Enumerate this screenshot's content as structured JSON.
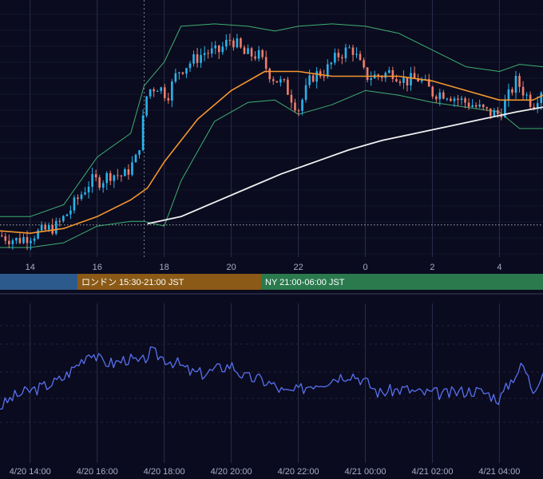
{
  "colors": {
    "background": "#0a0b1f",
    "grid": "#2a2d48",
    "candle_up": "#2bb3ea",
    "candle_down": "#ef7d6a",
    "bb_band": "#3fae72",
    "ma_short": "#f4962e",
    "ma_long": "#f0f0f0",
    "oscillator": "#5870ee",
    "session_tokyo": "#2d5a8c",
    "session_london": "#8a5a16",
    "session_ny": "#2b7a4e"
  },
  "sessions": [
    {
      "label": "",
      "color_key": "session_tokyo"
    },
    {
      "label": "ロンドン 15:30-21:00 JST",
      "color_key": "session_london"
    },
    {
      "label": "NY 21:00-06:00 JST",
      "color_key": "session_ny"
    }
  ],
  "chart_data": [
    {
      "type": "candlestick",
      "title": "",
      "x_tick_labels": [
        "14",
        "16",
        "18",
        "20",
        "22",
        "0",
        "2",
        "4"
      ],
      "x_ticks_hours": [
        14,
        16,
        18,
        20,
        22,
        24,
        26,
        28
      ],
      "x_range_hours": [
        13.1,
        29.3
      ],
      "y_range": [
        0.0,
        1.0
      ],
      "y_axis_labels": "none",
      "grid": true,
      "reference_line": {
        "y": 0.115,
        "style": "dotted"
      },
      "crosshair_x_hour": 17.4,
      "indicators": [
        "Bollinger Bands",
        "Moving Average (short)",
        "Moving Average (long)"
      ],
      "price_path": [
        [
          13.1,
          0.07
        ],
        [
          13.6,
          0.05
        ],
        [
          14.2,
          0.08
        ],
        [
          14.8,
          0.11
        ],
        [
          15.2,
          0.18
        ],
        [
          15.5,
          0.24
        ],
        [
          15.8,
          0.3
        ],
        [
          16.1,
          0.3
        ],
        [
          16.4,
          0.33
        ],
        [
          16.8,
          0.32
        ],
        [
          17.2,
          0.4
        ],
        [
          17.5,
          0.68
        ],
        [
          17.8,
          0.7
        ],
        [
          18.1,
          0.66
        ],
        [
          18.4,
          0.76
        ],
        [
          18.8,
          0.8
        ],
        [
          19.2,
          0.84
        ],
        [
          19.6,
          0.84
        ],
        [
          20.0,
          0.9
        ],
        [
          20.4,
          0.83
        ],
        [
          20.8,
          0.83
        ],
        [
          21.2,
          0.74
        ],
        [
          21.6,
          0.7
        ],
        [
          22.0,
          0.6
        ],
        [
          22.4,
          0.74
        ],
        [
          22.8,
          0.76
        ],
        [
          23.2,
          0.83
        ],
        [
          23.6,
          0.86
        ],
        [
          24.0,
          0.74
        ],
        [
          24.4,
          0.74
        ],
        [
          24.8,
          0.76
        ],
        [
          25.2,
          0.72
        ],
        [
          25.6,
          0.73
        ],
        [
          26.0,
          0.67
        ],
        [
          26.4,
          0.67
        ],
        [
          26.8,
          0.64
        ],
        [
          27.2,
          0.62
        ],
        [
          27.6,
          0.59
        ],
        [
          28.0,
          0.58
        ],
        [
          28.5,
          0.72
        ],
        [
          29.0,
          0.62
        ],
        [
          29.3,
          0.7
        ]
      ],
      "ma_short_path": [
        [
          13.1,
          0.09
        ],
        [
          14.0,
          0.08
        ],
        [
          15.0,
          0.1
        ],
        [
          16.0,
          0.15
        ],
        [
          17.0,
          0.22
        ],
        [
          17.5,
          0.27
        ],
        [
          18.0,
          0.38
        ],
        [
          19.0,
          0.56
        ],
        [
          20.0,
          0.68
        ],
        [
          21.0,
          0.76
        ],
        [
          22.0,
          0.76
        ],
        [
          23.0,
          0.74
        ],
        [
          24.0,
          0.74
        ],
        [
          25.0,
          0.74
        ],
        [
          26.0,
          0.72
        ],
        [
          27.0,
          0.68
        ],
        [
          28.0,
          0.64
        ],
        [
          29.0,
          0.64
        ],
        [
          29.3,
          0.66
        ]
      ],
      "ma_long_path": [
        [
          17.5,
          0.12
        ],
        [
          18.5,
          0.15
        ],
        [
          19.5,
          0.21
        ],
        [
          20.5,
          0.27
        ],
        [
          21.5,
          0.33
        ],
        [
          22.5,
          0.38
        ],
        [
          23.5,
          0.43
        ],
        [
          24.5,
          0.47
        ],
        [
          25.5,
          0.5
        ],
        [
          26.5,
          0.53
        ],
        [
          27.5,
          0.56
        ],
        [
          28.5,
          0.59
        ],
        [
          29.3,
          0.61
        ]
      ],
      "bb_upper_path": [
        [
          13.1,
          0.15
        ],
        [
          14.0,
          0.15
        ],
        [
          15.0,
          0.2
        ],
        [
          16.0,
          0.4
        ],
        [
          17.0,
          0.5
        ],
        [
          17.4,
          0.7
        ],
        [
          18.0,
          0.8
        ],
        [
          18.5,
          0.95
        ],
        [
          19.5,
          0.96
        ],
        [
          20.5,
          0.95
        ],
        [
          21.3,
          0.93
        ],
        [
          22.0,
          0.95
        ],
        [
          23.0,
          0.96
        ],
        [
          24.0,
          0.95
        ],
        [
          25.0,
          0.92
        ],
        [
          26.0,
          0.85
        ],
        [
          27.0,
          0.78
        ],
        [
          28.0,
          0.76
        ],
        [
          28.6,
          0.79
        ],
        [
          29.3,
          0.78
        ]
      ],
      "bb_lower_path": [
        [
          13.1,
          0.02
        ],
        [
          14.0,
          0.02
        ],
        [
          15.0,
          0.04
        ],
        [
          16.0,
          0.11
        ],
        [
          17.0,
          0.13
        ],
        [
          17.4,
          0.13
        ],
        [
          18.0,
          0.11
        ],
        [
          18.5,
          0.3
        ],
        [
          19.5,
          0.55
        ],
        [
          20.5,
          0.63
        ],
        [
          21.3,
          0.64
        ],
        [
          22.0,
          0.58
        ],
        [
          23.0,
          0.62
        ],
        [
          24.0,
          0.68
        ],
        [
          25.0,
          0.66
        ],
        [
          26.0,
          0.63
        ],
        [
          27.0,
          0.61
        ],
        [
          28.0,
          0.59
        ],
        [
          28.6,
          0.52
        ],
        [
          29.3,
          0.52
        ]
      ]
    },
    {
      "type": "line",
      "title": "",
      "x_tick_labels": [
        "4/20 14:00",
        "4/20 16:00",
        "4/20 18:00",
        "4/20 20:00",
        "4/20 22:00",
        "4/21 00:00",
        "4/21 02:00",
        "4/21 04:00"
      ],
      "x_ticks_hours": [
        14,
        16,
        18,
        20,
        22,
        24,
        26,
        28
      ],
      "x_range_hours": [
        13.1,
        29.3
      ],
      "y_range": [
        0.0,
        1.0
      ],
      "y_axis_labels": "none",
      "grid": true,
      "series": [
        {
          "color_key": "oscillator",
          "points": [
            [
              13.1,
              0.22
            ],
            [
              13.5,
              0.3
            ],
            [
              13.9,
              0.34
            ],
            [
              14.3,
              0.37
            ],
            [
              14.7,
              0.41
            ],
            [
              15.0,
              0.45
            ],
            [
              15.4,
              0.55
            ],
            [
              15.8,
              0.66
            ],
            [
              16.1,
              0.58
            ],
            [
              16.5,
              0.56
            ],
            [
              16.9,
              0.6
            ],
            [
              17.3,
              0.56
            ],
            [
              17.6,
              0.65
            ],
            [
              18.0,
              0.6
            ],
            [
              18.4,
              0.56
            ],
            [
              18.8,
              0.49
            ],
            [
              19.2,
              0.48
            ],
            [
              19.6,
              0.52
            ],
            [
              20.0,
              0.55
            ],
            [
              20.4,
              0.45
            ],
            [
              20.8,
              0.44
            ],
            [
              21.2,
              0.4
            ],
            [
              21.6,
              0.33
            ],
            [
              22.0,
              0.35
            ],
            [
              22.4,
              0.4
            ],
            [
              22.8,
              0.42
            ],
            [
              23.2,
              0.46
            ],
            [
              23.6,
              0.48
            ],
            [
              24.0,
              0.42
            ],
            [
              24.4,
              0.33
            ],
            [
              24.8,
              0.35
            ],
            [
              25.2,
              0.36
            ],
            [
              25.6,
              0.33
            ],
            [
              26.0,
              0.33
            ],
            [
              26.4,
              0.32
            ],
            [
              26.8,
              0.34
            ],
            [
              27.2,
              0.35
            ],
            [
              27.6,
              0.33
            ],
            [
              28.0,
              0.28
            ],
            [
              28.4,
              0.45
            ],
            [
              28.7,
              0.55
            ],
            [
              29.0,
              0.35
            ],
            [
              29.3,
              0.5
            ]
          ]
        }
      ]
    }
  ]
}
